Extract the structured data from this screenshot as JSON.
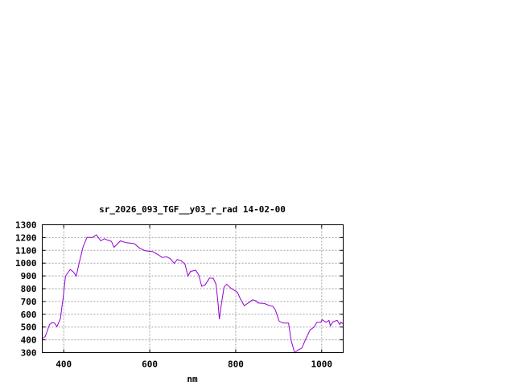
{
  "chart_data": {
    "type": "line",
    "title": "sr_2026_093_TGF__y03_r_rad 14-02-00",
    "xlabel": "nm",
    "ylabel": "",
    "xlim": [
      350,
      1050
    ],
    "ylim": [
      300,
      1300
    ],
    "xticks": [
      400,
      600,
      800,
      1000
    ],
    "yticks": [
      300,
      400,
      500,
      600,
      700,
      800,
      900,
      1000,
      1100,
      1200,
      1300
    ],
    "grid": true,
    "line_color": "#9400d3",
    "series": [
      {
        "x": [
          351,
          357,
          367,
          373,
          379,
          384,
          392,
          398,
          404,
          415,
          423,
          429,
          436,
          445,
          454,
          467,
          476,
          486,
          495,
          501,
          511,
          517,
          532,
          545,
          564,
          576,
          589,
          607,
          620,
          629,
          639,
          648,
          657,
          664,
          673,
          682,
          689,
          695,
          707,
          714,
          721,
          729,
          739,
          748,
          754,
          759,
          762,
          767,
          773,
          779,
          789,
          804,
          811,
          820,
          829,
          839,
          848,
          851,
          867,
          876,
          886,
          892,
          901,
          911,
          923,
          929,
          937,
          945,
          954,
          964,
          973,
          982,
          989,
          998,
          1001,
          1010,
          1017,
          1020,
          1026,
          1036,
          1042,
          1045,
          1050
        ],
        "y": [
          411,
          426,
          520,
          535,
          530,
          503,
          562,
          709,
          898,
          950,
          929,
          898,
          1002,
          1128,
          1201,
          1201,
          1222,
          1174,
          1191,
          1181,
          1170,
          1124,
          1174,
          1160,
          1153,
          1118,
          1097,
          1090,
          1065,
          1044,
          1050,
          1034,
          998,
          1028,
          1019,
          992,
          898,
          935,
          944,
          908,
          818,
          830,
          883,
          881,
          835,
          688,
          562,
          688,
          814,
          835,
          803,
          772,
          719,
          667,
          688,
          713,
          704,
          688,
          684,
          671,
          663,
          635,
          546,
          531,
          531,
          394,
          300,
          321,
          336,
          416,
          478,
          499,
          537,
          537,
          558,
          537,
          552,
          510,
          541,
          552,
          520,
          537,
          524
        ]
      }
    ]
  }
}
